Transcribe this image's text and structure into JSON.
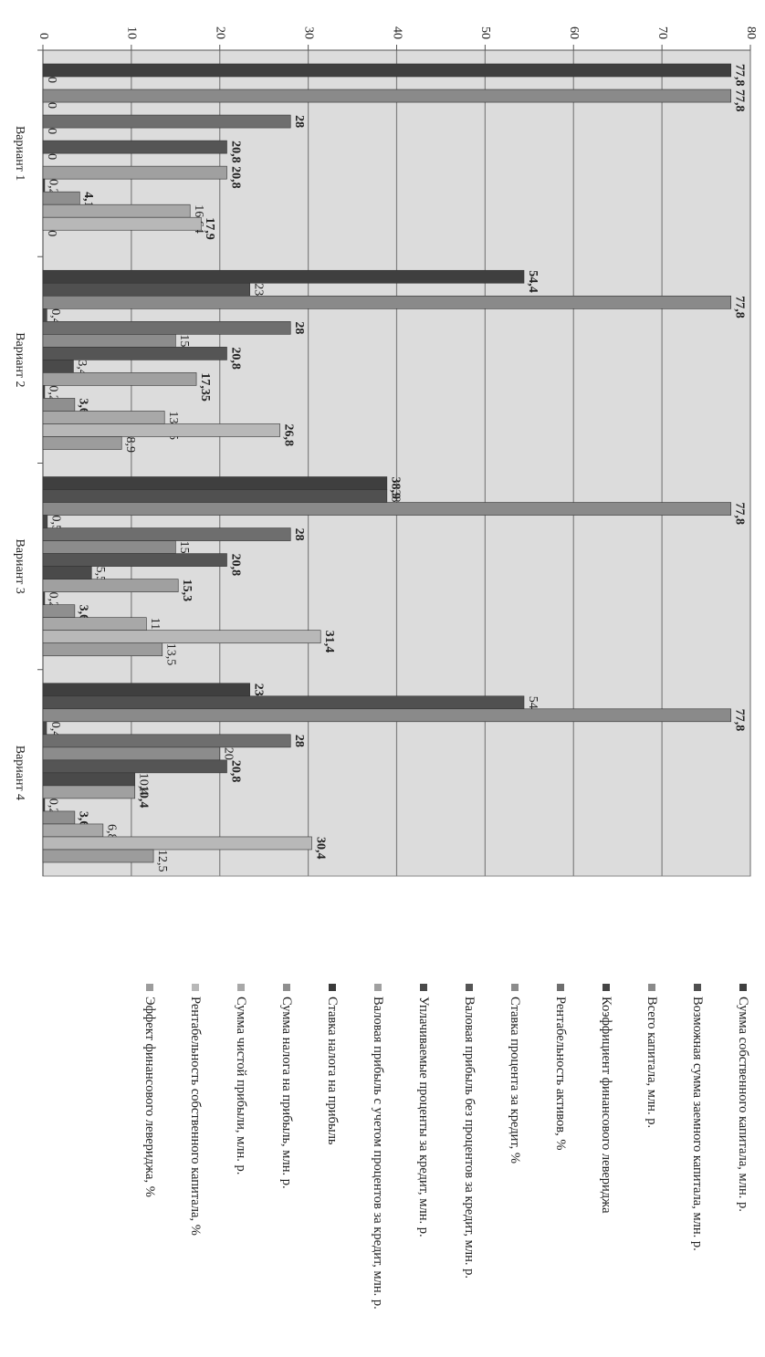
{
  "chart_data": {
    "type": "bar",
    "categories": [
      "Вариант 1",
      "Вариант 2",
      "Вариант 3",
      "Вариант 4"
    ],
    "ylim": [
      0,
      80
    ],
    "yticks": [
      0,
      10,
      20,
      30,
      40,
      50,
      60,
      70,
      80
    ],
    "grid": true,
    "legend": "right",
    "series": [
      {
        "name": "Сумма собственного капитала, млн. р.",
        "color": "#3f3f3f",
        "values": [
          77.8,
          54.4,
          38.9,
          23.4
        ],
        "value_labels": [
          "77,8",
          "54,4",
          "38,9",
          "23,4"
        ]
      },
      {
        "name": "Возможная сумма заемного капитала, млн. р.",
        "color": "#505050",
        "values": [
          0,
          23.4,
          38.9,
          54.4
        ],
        "value_labels": [
          "0",
          "23,4",
          "38,9",
          "54,4"
        ]
      },
      {
        "name": "Всего капитала, млн. р.",
        "color": "#8a8a8a",
        "values": [
          77.8,
          77.8,
          77.8,
          77.8
        ],
        "value_labels": [
          "77,8",
          "77,8",
          "77,8",
          "77,8"
        ]
      },
      {
        "name": "Коэффициент финансового левериджа",
        "color": "#454545",
        "values": [
          0,
          0.45,
          0.5,
          0.41
        ],
        "value_labels": [
          "0",
          "0,45",
          "0,5",
          "0,41"
        ]
      },
      {
        "name": "Рентабельность активов, %",
        "color": "#6e6e6e",
        "values": [
          28,
          28,
          28,
          28
        ],
        "value_labels": [
          "28",
          "28",
          "28",
          "28"
        ]
      },
      {
        "name": "Ставка процента за кредит, %",
        "color": "#8c8c8c",
        "values": [
          0,
          15,
          15,
          20
        ],
        "value_labels": [
          "0",
          "15",
          "15",
          "20"
        ]
      },
      {
        "name": "Валовая прибыль без процентов за кредит, млн. р.",
        "color": "#555555",
        "values": [
          20.8,
          20.8,
          20.8,
          20.8
        ],
        "value_labels": [
          "20,8",
          "20,8",
          "20,8",
          "20,8"
        ]
      },
      {
        "name": "Уплачиваемые проценты за кредит, млн. р.",
        "color": "#4a4a4a",
        "values": [
          0,
          3.45,
          5.5,
          10.4
        ],
        "value_labels": [
          "0",
          "3,45",
          "5,5",
          "10,4"
        ]
      },
      {
        "name": "Валовая прибыль с учетом процентов за кредит, млн. р.",
        "color": "#a0a0a0",
        "values": [
          20.8,
          17.35,
          15.3,
          10.4
        ],
        "value_labels": [
          "20,8",
          "17,35",
          "15,3",
          "10,4"
        ]
      },
      {
        "name": "Ставка налога на прибыль",
        "color": "#3a3a3a",
        "values": [
          0.2,
          0.2,
          0.2,
          0.2
        ],
        "value_labels": [
          "0,2",
          "0,2",
          "0,2",
          "0,2"
        ]
      },
      {
        "name": "Сумма налога на прибыль, млн. р.",
        "color": "#8f8f8f",
        "values": [
          4.16,
          3.6,
          3.6,
          3.6
        ],
        "value_labels": [
          "4,16",
          "3,6",
          "3,6",
          "3,6"
        ]
      },
      {
        "name": "Сумма чистой прибыли, млн. р.",
        "color": "#a8a8a8",
        "values": [
          16.64,
          13.75,
          11.7,
          6.8
        ],
        "value_labels": [
          "16,64",
          "13,75",
          "11,7",
          "6,8"
        ]
      },
      {
        "name": "Рентабельность собственного капитала, %",
        "color": "#b8b8b8",
        "values": [
          17.9,
          26.8,
          31.4,
          30.4
        ],
        "value_labels": [
          "17,9",
          "26,8",
          "31,4",
          "30,4"
        ]
      },
      {
        "name": "Эффект финансового левериджа, %",
        "color": "#9c9c9c",
        "values": [
          0,
          8.9,
          13.5,
          12.5
        ],
        "value_labels": [
          "0",
          "8,9",
          "13,5",
          "12,5"
        ]
      }
    ]
  }
}
